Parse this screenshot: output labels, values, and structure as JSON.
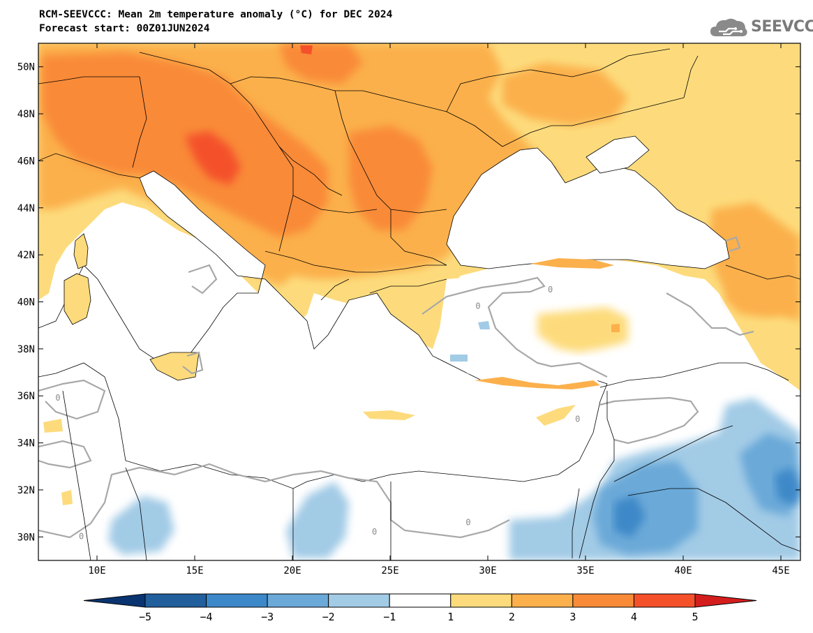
{
  "title": {
    "line1": "RCM-SEEVCCC: Mean 2m temperature anomaly (°C) for DEC 2024",
    "line2": "Forecast start: 00Z01JUN2024"
  },
  "logo": {
    "text": "SEEVCCC",
    "icon": "cloud-icon"
  },
  "map": {
    "lon_range": [
      7,
      46
    ],
    "lat_range": [
      29,
      51
    ],
    "lon_ticks": [
      {
        "value": 10,
        "label": "10E"
      },
      {
        "value": 15,
        "label": "15E"
      },
      {
        "value": 20,
        "label": "20E"
      },
      {
        "value": 25,
        "label": "25E"
      },
      {
        "value": 30,
        "label": "30E"
      },
      {
        "value": 35,
        "label": "35E"
      },
      {
        "value": 40,
        "label": "40E"
      },
      {
        "value": 45,
        "label": "45E"
      }
    ],
    "lat_ticks": [
      {
        "value": 30,
        "label": "30N"
      },
      {
        "value": 32,
        "label": "32N"
      },
      {
        "value": 34,
        "label": "34N"
      },
      {
        "value": 36,
        "label": "36N"
      },
      {
        "value": 38,
        "label": "38N"
      },
      {
        "value": 40,
        "label": "40N"
      },
      {
        "value": 42,
        "label": "42N"
      },
      {
        "value": 44,
        "label": "44N"
      },
      {
        "value": 46,
        "label": "46N"
      },
      {
        "value": 48,
        "label": "48N"
      },
      {
        "value": 50,
        "label": "50N"
      }
    ],
    "contour_labels": [
      {
        "text": "0",
        "lon": 29.5,
        "lat": 39.7
      },
      {
        "text": "0",
        "lon": 33.2,
        "lat": 40.4
      },
      {
        "text": "0",
        "lon": 8.0,
        "lat": 35.8
      },
      {
        "text": "0",
        "lon": 9.2,
        "lat": 29.9
      },
      {
        "text": "0",
        "lon": 24.2,
        "lat": 30.1
      },
      {
        "text": "0",
        "lon": 29.0,
        "lat": 30.5
      },
      {
        "text": "0",
        "lon": 34.6,
        "lat": 34.9
      }
    ]
  },
  "colorbar": {
    "colors": [
      "#0a3470",
      "#215f9d",
      "#3c88c8",
      "#6aa9d8",
      "#a2cbe6",
      "#ffffff",
      "#fddb7c",
      "#fbb04c",
      "#f98a38",
      "#f4512b",
      "#d41e1e"
    ],
    "labels": [
      "−5",
      "−4",
      "−3",
      "−2",
      "−1",
      "1",
      "2",
      "3",
      "4",
      "5"
    ]
  }
}
